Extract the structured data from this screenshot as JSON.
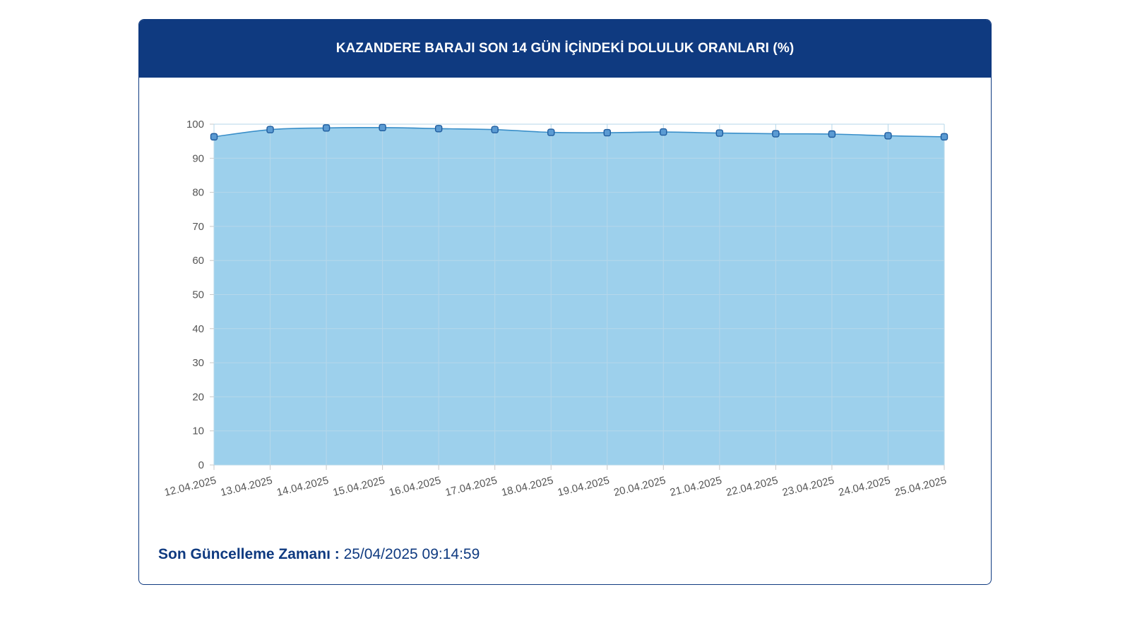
{
  "header": {
    "title": "KAZANDERE BARAJI SON 14 GÜN İÇİNDEKİ DOLULUK ORANLARI (%)"
  },
  "footer": {
    "label": "Son Güncelleme Zamanı :",
    "value": "25/04/2025 09:14:59"
  },
  "colors": {
    "header_bg": "#0f3a80",
    "area_fill": "#9dd0ec",
    "line": "#3a8fc9",
    "point_fill": "#5b9bd3",
    "point_stroke": "#1f5c9e",
    "grid": "#b6d7ea",
    "tick_text": "#555555"
  },
  "chart_data": {
    "type": "area",
    "categories": [
      "12.04.2025",
      "13.04.2025",
      "14.04.2025",
      "15.04.2025",
      "16.04.2025",
      "17.04.2025",
      "18.04.2025",
      "19.04.2025",
      "20.04.2025",
      "21.04.2025",
      "22.04.2025",
      "23.04.2025",
      "24.04.2025",
      "25.04.2025"
    ],
    "values": [
      96.3,
      98.4,
      98.9,
      99.0,
      98.7,
      98.4,
      97.6,
      97.5,
      97.7,
      97.4,
      97.2,
      97.1,
      96.6,
      96.3
    ],
    "ylim": [
      0,
      100
    ],
    "yticks": [
      0,
      10,
      20,
      30,
      40,
      50,
      60,
      70,
      80,
      90,
      100
    ],
    "grid": true,
    "legend": "none"
  }
}
